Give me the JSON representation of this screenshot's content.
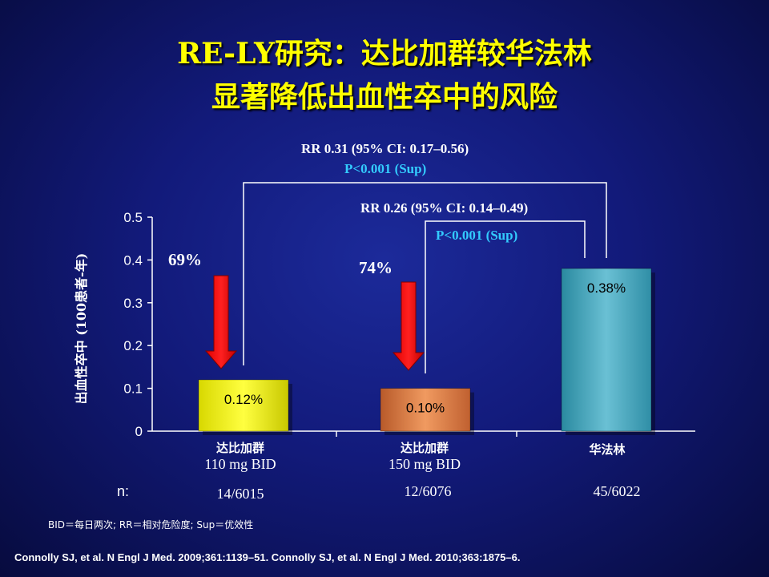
{
  "title": {
    "line1": "RE-LY研究：达比加群较华法林",
    "line2": "显著降低出血性卒中的风险"
  },
  "chart_data": {
    "type": "bar",
    "categories": [
      "达比加群 110 mg BID",
      "达比加群 150 mg BID",
      "华法林"
    ],
    "category_lines": [
      {
        "cn": "达比加群",
        "dose": "110 mg BID"
      },
      {
        "cn": "达比加群",
        "dose": "150 mg BID"
      },
      {
        "cn": "华法林",
        "dose": ""
      }
    ],
    "values": [
      0.12,
      0.1,
      0.38
    ],
    "data_labels": [
      "0.12%",
      "0.10%",
      "0.38%"
    ],
    "bar_colors": [
      "#f0f000",
      "#d9743c",
      "#3aa0b8"
    ],
    "ylabel": "出血性卒中 (100患者-年)",
    "ylim": [
      0,
      0.5
    ],
    "yticks": [
      "0",
      "0.1",
      "0.2",
      "0.3",
      "0.4",
      "0.5"
    ],
    "ytick_values": [
      0,
      0.1,
      0.2,
      0.3,
      0.4,
      0.5
    ],
    "n_label": "n:",
    "n_values": [
      "14/6015",
      "12/6076",
      "45/6022"
    ],
    "reductions": [
      "69%",
      "74%"
    ],
    "comparisons": [
      {
        "rr": "RR 0.31 (95% CI: 0.17–0.56)",
        "p": "P<0.001 (Sup)"
      },
      {
        "rr": "RR 0.26  (95% CI: 0.14–0.49)",
        "p": "P<0.001 (Sup)"
      }
    ]
  },
  "footnote": "BID＝每日两次; RR＝相对危险度; Sup＝优效性",
  "citation": "Connolly SJ, et al. N Engl J Med. 2009;361:1139–51. Connolly SJ, et al. N Engl J Med. 2010;363:1875–6."
}
